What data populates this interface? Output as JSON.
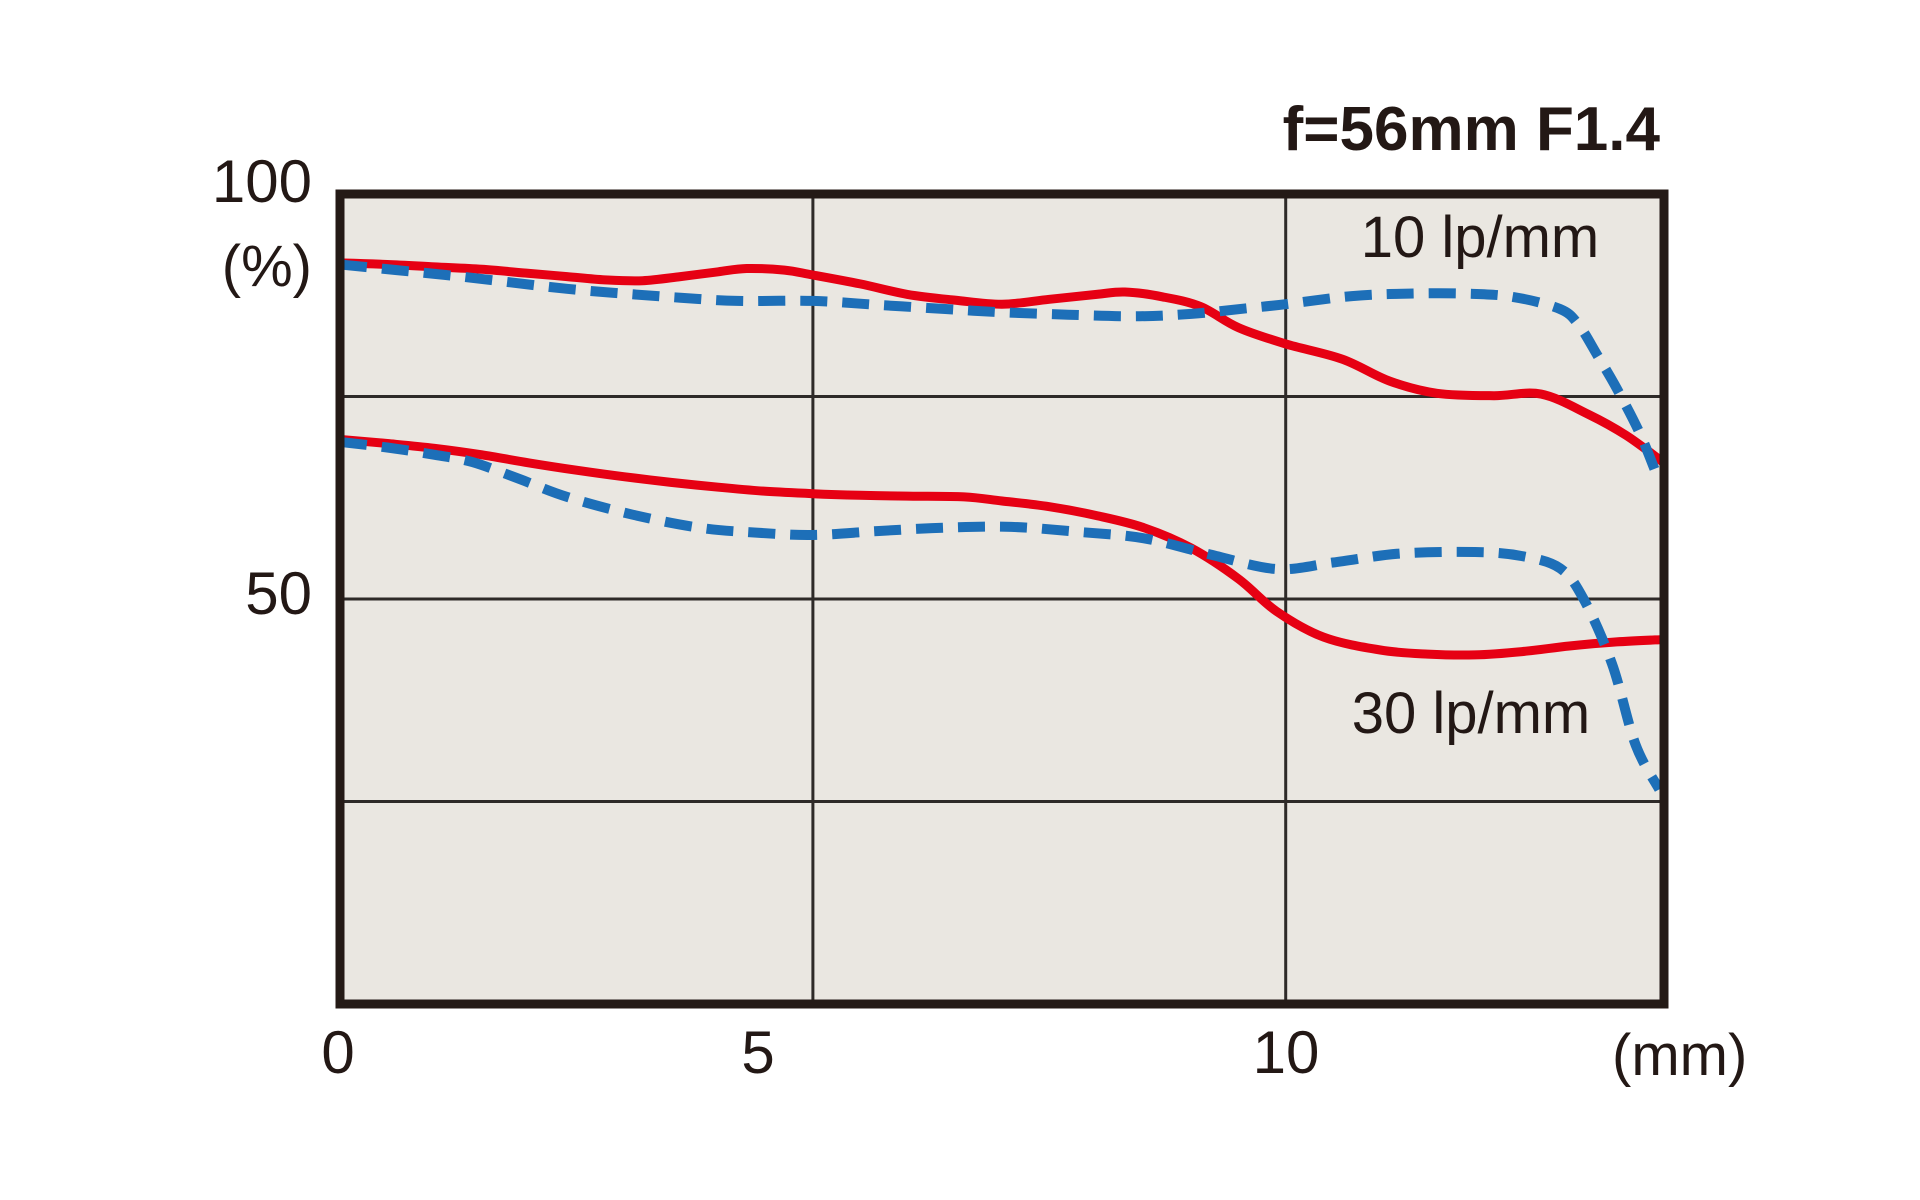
{
  "title": "f=56mm F1.4",
  "axes": {
    "y": {
      "tick_top": "100",
      "unit": "(%)",
      "tick_mid": "50"
    },
    "x": {
      "tick_0": "0",
      "tick_5": "5",
      "tick_10": "10",
      "unit": "(mm)"
    }
  },
  "annotations": {
    "label_10lp": "10 lp/mm",
    "label_30lp": "30 lp/mm"
  },
  "colors": {
    "curve_red": "#e60013",
    "curve_blue": "#1d6fb8",
    "plot_background": "#eae7e1",
    "frame": "#241a16",
    "gridline": "#2e2a28",
    "text": "#231815",
    "page_background": "#ffffff"
  },
  "chart_data": {
    "type": "line",
    "title": "f=56mm F1.4",
    "xlabel": "(mm)",
    "ylabel": "(%)",
    "xlim": [
      0,
      14
    ],
    "ylim": [
      0,
      100
    ],
    "x_ticks": [
      0,
      5,
      10
    ],
    "y_ticks": [
      50,
      100
    ],
    "grid": {
      "h_lines_pct": [
        25,
        50,
        75
      ],
      "v_lines_mm": [
        5,
        10
      ]
    },
    "legend_position": "inside-annotations",
    "series": [
      {
        "name": "10 lp/mm (red solid)",
        "color": "#e60013",
        "style": "solid",
        "points": [
          [
            0,
            91.5
          ],
          [
            0.5,
            91.3
          ],
          [
            1,
            91.0
          ],
          [
            1.5,
            90.7
          ],
          [
            2,
            90.2
          ],
          [
            2.4,
            89.8
          ],
          [
            2.8,
            89.4
          ],
          [
            3.2,
            89.3
          ],
          [
            3.6,
            89.8
          ],
          [
            4.0,
            90.4
          ],
          [
            4.3,
            90.8
          ],
          [
            4.7,
            90.6
          ],
          [
            5.0,
            90.0
          ],
          [
            5.5,
            88.9
          ],
          [
            6.0,
            87.6
          ],
          [
            6.5,
            86.9
          ],
          [
            7.0,
            86.4
          ],
          [
            7.5,
            87.0
          ],
          [
            8.0,
            87.6
          ],
          [
            8.3,
            87.9
          ],
          [
            8.7,
            87.3
          ],
          [
            9.1,
            86.1
          ],
          [
            9.5,
            83.5
          ],
          [
            10.0,
            81.5
          ],
          [
            10.6,
            79.6
          ],
          [
            11.1,
            76.9
          ],
          [
            11.6,
            75.4
          ],
          [
            12.2,
            75.1
          ],
          [
            12.7,
            75.3
          ],
          [
            13.2,
            72.8
          ],
          [
            13.6,
            70.2
          ],
          [
            14.0,
            66.8
          ]
        ]
      },
      {
        "name": "10 lp/mm (blue dashed)",
        "color": "#1d6fb8",
        "style": "dashed",
        "points": [
          [
            0,
            91.3
          ],
          [
            0.6,
            90.6
          ],
          [
            1.2,
            89.9
          ],
          [
            1.8,
            89.1
          ],
          [
            2.4,
            88.3
          ],
          [
            3.0,
            87.7
          ],
          [
            3.6,
            87.2
          ],
          [
            4.2,
            86.8
          ],
          [
            5.0,
            86.8
          ],
          [
            5.7,
            86.3
          ],
          [
            6.4,
            85.8
          ],
          [
            7.0,
            85.4
          ],
          [
            7.7,
            85.1
          ],
          [
            8.4,
            84.9
          ],
          [
            9.0,
            85.2
          ],
          [
            9.6,
            85.9
          ],
          [
            10.0,
            86.4
          ],
          [
            10.7,
            87.4
          ],
          [
            11.3,
            87.7
          ],
          [
            11.9,
            87.7
          ],
          [
            12.4,
            87.3
          ],
          [
            12.9,
            85.8
          ],
          [
            13.1,
            83.8
          ],
          [
            13.3,
            80.0
          ],
          [
            13.5,
            76.0
          ],
          [
            13.75,
            70.3
          ],
          [
            13.95,
            64.5
          ]
        ]
      },
      {
        "name": "30 lp/mm (red solid)",
        "color": "#e60013",
        "style": "solid",
        "points": [
          [
            0,
            69.7
          ],
          [
            0.5,
            69.2
          ],
          [
            1,
            68.6
          ],
          [
            1.5,
            67.8
          ],
          [
            2,
            66.8
          ],
          [
            2.5,
            65.9
          ],
          [
            3,
            65.1
          ],
          [
            3.5,
            64.4
          ],
          [
            4,
            63.8
          ],
          [
            4.5,
            63.3
          ],
          [
            5,
            63.0
          ],
          [
            5.5,
            62.8
          ],
          [
            6,
            62.7
          ],
          [
            6.6,
            62.6
          ],
          [
            7,
            62.1
          ],
          [
            7.5,
            61.4
          ],
          [
            8,
            60.3
          ],
          [
            8.5,
            58.8
          ],
          [
            9,
            56.3
          ],
          [
            9.5,
            52.5
          ],
          [
            9.9,
            48.5
          ],
          [
            10.4,
            45.3
          ],
          [
            11,
            43.7
          ],
          [
            11.5,
            43.2
          ],
          [
            12,
            43.1
          ],
          [
            12.5,
            43.5
          ],
          [
            13,
            44.2
          ],
          [
            13.5,
            44.7
          ],
          [
            14,
            45.0
          ]
        ]
      },
      {
        "name": "30 lp/mm (blue dashed)",
        "color": "#1d6fb8",
        "style": "dashed",
        "points": [
          [
            0,
            69.4
          ],
          [
            0.5,
            68.7
          ],
          [
            1,
            67.8
          ],
          [
            1.4,
            66.9
          ],
          [
            1.9,
            64.8
          ],
          [
            2.4,
            62.6
          ],
          [
            3.1,
            60.4
          ],
          [
            3.8,
            58.8
          ],
          [
            4.4,
            58.2
          ],
          [
            5,
            57.9
          ],
          [
            5.7,
            58.4
          ],
          [
            6.4,
            58.8
          ],
          [
            7.1,
            58.9
          ],
          [
            7.8,
            58.3
          ],
          [
            8.5,
            57.5
          ],
          [
            9.2,
            55.5
          ],
          [
            9.9,
            53.7
          ],
          [
            10.5,
            54.5
          ],
          [
            11.2,
            55.6
          ],
          [
            12.0,
            55.8
          ],
          [
            12.5,
            55.3
          ],
          [
            12.9,
            53.8
          ],
          [
            13.15,
            50.0
          ],
          [
            13.45,
            42.0
          ],
          [
            13.7,
            32.0
          ],
          [
            13.95,
            26.5
          ]
        ]
      }
    ]
  }
}
